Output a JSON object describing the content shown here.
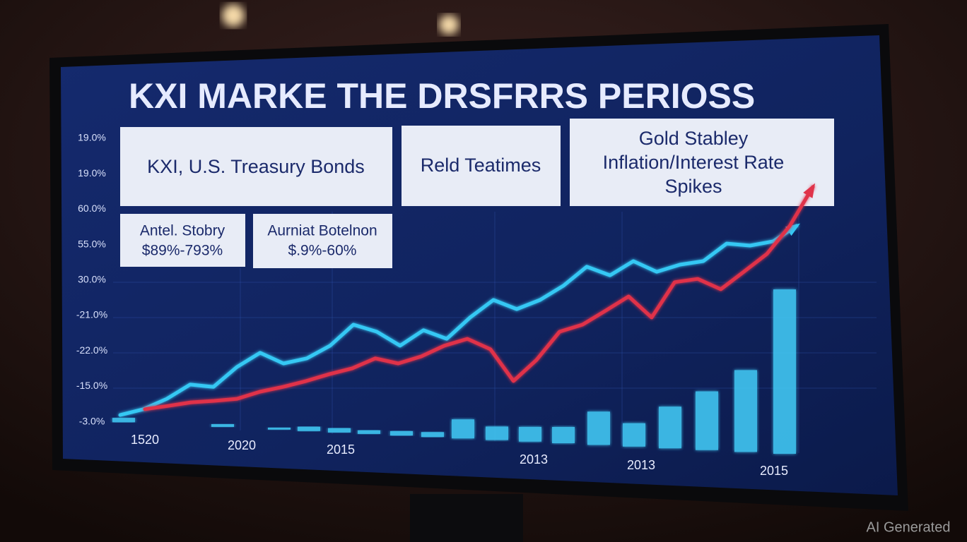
{
  "title": "KXI MARKE THE DRSFRRS PERIOSS",
  "boxes": [
    {
      "lines": [
        "KXI, U.S. Treasury Bonds"
      ]
    },
    {
      "lines": [
        "Reld Teatimes"
      ]
    },
    {
      "lines": [
        "Gold Stabley",
        "Inflation/Interest Rate",
        "Spikes"
      ]
    },
    {
      "lines": [
        "Antel. Stobry",
        "$89%-793%"
      ]
    },
    {
      "lines": [
        "Aurniat Botelnon",
        "$.9%-60%"
      ]
    }
  ],
  "chart_data": {
    "type": "line",
    "y_labels": [
      "19.0%",
      "19.0%",
      "60.0%",
      "55.0%",
      "30.0%",
      "-21.0%",
      "-22.0%",
      "-15.0%",
      "-3.0%"
    ],
    "x_labels": [
      "1520",
      "2020",
      "2015",
      "2013",
      "2013",
      "2015"
    ],
    "ylim": [
      0,
      100
    ],
    "series": [
      {
        "color": "#36c8f4",
        "values": [
          15.8,
          18.1,
          22.2,
          27.8,
          26.9,
          34.7,
          40.3,
          36.1,
          38.1,
          43.1,
          51.4,
          48.6,
          43.1,
          49.2,
          45.8,
          54.2,
          61.1,
          57.5,
          61.1,
          66.7,
          74.2,
          70.8,
          76.4,
          72.2,
          75,
          76.4,
          83.3,
          82.5,
          84.2,
          90.3
        ]
      },
      {
        "color": "#e0334a",
        "values": [
          18.1,
          19.4,
          20.8,
          21.4,
          22.2,
          25,
          26.9,
          29.2,
          31.9,
          34.2,
          38.1,
          36.1,
          38.9,
          43.1,
          45.8,
          41.7,
          29.2,
          37.5,
          48.6,
          51.4,
          56.9,
          62.5,
          54.2,
          68.1,
          69.4,
          65.3,
          72.2,
          79.2,
          90.3,
          105.6
        ]
      }
    ],
    "bars": {
      "color": "#3fc6f2",
      "values": [
        1.7,
        1.1,
        0.8,
        1.7,
        1.7,
        1.4,
        1.7,
        1.9,
        7.5,
        5.3,
        5.8,
        6.4,
        13.1,
        9.2,
        16.4,
        23.1,
        32.2,
        64.7
      ]
    }
  },
  "watermark": "AI Generated"
}
